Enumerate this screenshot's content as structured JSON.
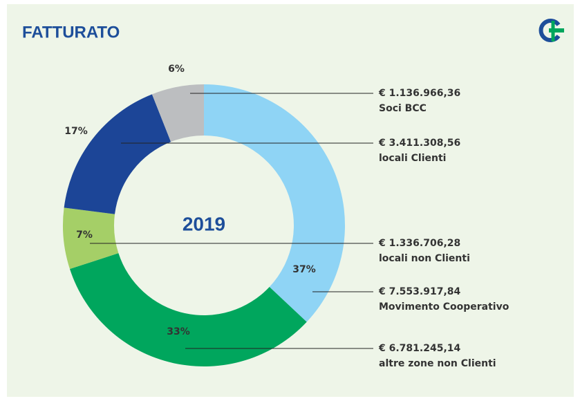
{
  "chart_data": {
    "type": "donut",
    "title": "FATTURATO",
    "center_label": "2019",
    "categories": [
      "Movimento Cooperativo",
      "altre zone non Clienti",
      "locali non Clienti",
      "locali Clienti",
      "Soci BCC"
    ],
    "values": [
      37,
      33,
      7,
      17,
      6
    ],
    "value_labels": [
      "37%",
      "33%",
      "7%",
      "17%",
      "6%"
    ],
    "amounts": [
      "€ 7.553.917,84",
      "€ 6.781.245,14",
      "€ 1.336.706,28",
      "€ 3.411.308,56",
      "€ 1.136.966,36"
    ],
    "colors": [
      "#8fd4f5",
      "#00a65d",
      "#a5cf67",
      "#1c4597",
      "#bcbec0"
    ]
  }
}
